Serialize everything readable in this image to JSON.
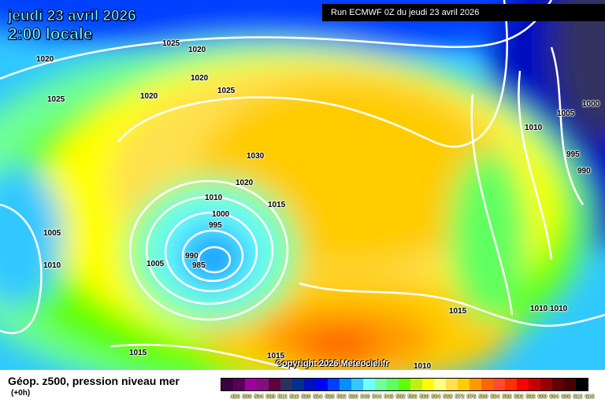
{
  "header": {
    "date": "jeudi 23 avril 2026",
    "time": "2:00 locale",
    "run": "Run ECMWF 0Z du jeudi 23 avril 2026"
  },
  "copyright": "Copyright 2026 Meteociel.fr",
  "footer": {
    "title": "Géop. z500, pression niveau mer",
    "subtitle": "(+0h)"
  },
  "legend": {
    "values": [
      "496",
      "500",
      "504",
      "508",
      "512",
      "516",
      "520",
      "524",
      "528",
      "532",
      "536",
      "540",
      "544",
      "548",
      "552",
      "556",
      "560",
      "564",
      "568",
      "572",
      "576",
      "580",
      "584",
      "588",
      "592",
      "596",
      "600",
      "604",
      "608",
      "612",
      "616"
    ],
    "colors": [
      "#3a0040",
      "#5a005a",
      "#a000a0",
      "#801080",
      "#600040",
      "#303060",
      "#003090",
      "#0010c0",
      "#0000ff",
      "#0040ff",
      "#0090ff",
      "#30c8ff",
      "#70ffff",
      "#70ff98",
      "#60ff60",
      "#60ff00",
      "#c0f010",
      "#ffff00",
      "#ffff80",
      "#ffe050",
      "#ffcc00",
      "#ff9900",
      "#ff6600",
      "#ff4c30",
      "#ff3000",
      "#ff0000",
      "#c80000",
      "#960000",
      "#640000",
      "#4a0000",
      "#000000"
    ]
  },
  "isobar_labels": [
    "1025",
    "1020",
    "1020",
    "1025",
    "1020",
    "1020",
    "1025",
    "1030",
    "1020",
    "1010",
    "1015",
    "1000",
    "995",
    "990",
    "985",
    "1005",
    "1010",
    "1005",
    "1015",
    "1015",
    "1010",
    "1015",
    "1010",
    "1010",
    "1005",
    "1000",
    "1010",
    "995",
    "990"
  ]
}
